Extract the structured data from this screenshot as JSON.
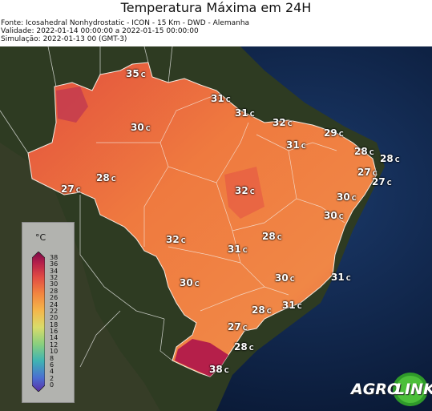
{
  "header": {
    "title": "Temperatura Máxima em 24H",
    "source": "Fonte: Icosahedral Nonhydrostatic - ICON - 15 Km - DWD - Alemanha",
    "validity": "Validade: 2022-01-14 00:00:00 a 2022-01-15 00:00:00",
    "simulation": "Simulação: 2022-01-13 00 (GMT-3)"
  },
  "legend": {
    "unit": "°C",
    "ticks": [
      "38",
      "36",
      "34",
      "32",
      "30",
      "28",
      "26",
      "24",
      "22",
      "20",
      "18",
      "16",
      "14",
      "12",
      "10",
      "8",
      "6",
      "4",
      "2",
      "0"
    ]
  },
  "temperature_labels": [
    {
      "value": "35",
      "unit": "C"
    },
    {
      "value": "31",
      "unit": "C"
    },
    {
      "value": "31",
      "unit": "C"
    },
    {
      "value": "30",
      "unit": "C"
    },
    {
      "value": "32",
      "unit": "C"
    },
    {
      "value": "29",
      "unit": "C"
    },
    {
      "value": "31",
      "unit": "C"
    },
    {
      "value": "28",
      "unit": "C"
    },
    {
      "value": "28",
      "unit": "C"
    },
    {
      "value": "28",
      "unit": "C"
    },
    {
      "value": "27",
      "unit": "C"
    },
    {
      "value": "27",
      "unit": "C"
    },
    {
      "value": "27",
      "unit": "C"
    },
    {
      "value": "32",
      "unit": "C"
    },
    {
      "value": "30",
      "unit": "C"
    },
    {
      "value": "30",
      "unit": "C"
    },
    {
      "value": "28",
      "unit": "C"
    },
    {
      "value": "32",
      "unit": "C"
    },
    {
      "value": "31",
      "unit": "C"
    },
    {
      "value": "30",
      "unit": "C"
    },
    {
      "value": "30",
      "unit": "C"
    },
    {
      "value": "31",
      "unit": "C"
    },
    {
      "value": "28",
      "unit": "C"
    },
    {
      "value": "31",
      "unit": "C"
    },
    {
      "value": "27",
      "unit": "C"
    },
    {
      "value": "28",
      "unit": "C"
    },
    {
      "value": "38",
      "unit": "C"
    }
  ],
  "logo": {
    "part1": "AGRO",
    "part2": "LINK"
  },
  "colors": {
    "ocean": "#0b1b3a",
    "land": "#2c3a1e",
    "brazil": "#ec6b3c",
    "hot": "#c1274a",
    "border": "#f5e9e0"
  }
}
